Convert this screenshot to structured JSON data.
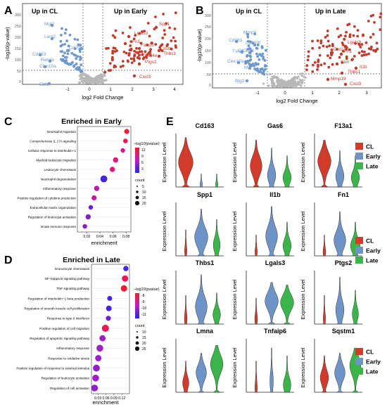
{
  "colors": {
    "up": "#c23b2a",
    "down": "#6c97cf",
    "ns": "#b8b8b8",
    "cl": "#d23a2a",
    "early": "#6e93c6",
    "late": "#3bb54a"
  },
  "panels": {
    "A": {
      "letter": "A",
      "title_left": "Up in CL",
      "title_right": "Up in Early",
      "xlabel": "log2 Fold Change",
      "ylabel": "-log10(p-value)",
      "xticks": [
        "-1",
        "0",
        "1",
        "2",
        "3",
        "4"
      ],
      "yticks": [
        "0",
        "50",
        "100",
        "150",
        "200",
        "250",
        "300"
      ],
      "left_genes": [
        "Mgl2",
        "Lars2",
        "Cd163",
        "Cd209f",
        "Retnla",
        "Clec10a",
        "Ebf1"
      ],
      "right_genes": [
        "Spp1",
        "Lgals3",
        "Fn1",
        "Fabp5",
        "Il1b",
        "Thbs1",
        "Clec4e",
        "Ptgs2",
        "Cxcl3"
      ]
    },
    "B": {
      "letter": "B",
      "title_left": "Up in CL",
      "title_right": "Up in Late",
      "xlabel": "log2 Fold Change",
      "ylabel": "-log10(p-value)",
      "xticks": [
        "-1",
        "0",
        "1",
        "2",
        "3"
      ],
      "yticks": [
        "0",
        "50",
        "100",
        "150",
        "200",
        "250",
        "300"
      ],
      "left_genes": [
        "Mmp9",
        "Cd163",
        "Cd209f",
        "Txnip",
        "Cd209d",
        "Clec10a",
        "Mal",
        "Btg2"
      ],
      "right_genes": [
        "Lgals3",
        "Cxcl2",
        "Fn1",
        "Il1m",
        "Il1b",
        "Thbs1",
        "Mmp19",
        "Cxcl3"
      ]
    },
    "C": {
      "letter": "C",
      "title": "Enriched in Early",
      "xlabel": "enrichment",
      "xticks": [
        "0.02",
        "0.04",
        "0.06",
        "0.08"
      ],
      "legend_color_title": "−log10(pvalue)",
      "legend_color_ticks": [
        "12",
        "9",
        "6",
        "3"
      ],
      "legend_size_title": "count",
      "legend_size_ticks": [
        "5",
        "10",
        "15",
        "20"
      ]
    },
    "D": {
      "letter": "D",
      "title": "Enriched in Late",
      "xlabel": "enrichment",
      "xticks": [
        "0.03",
        "0.06",
        "0.09",
        "0.12"
      ],
      "legend_color_title": "−log10(pvalue)",
      "legend_color_ticks": [
        "-8",
        "-9",
        "-10",
        "-11"
      ],
      "legend_size_title": "count",
      "legend_size_ticks": [
        "10",
        "15",
        "20",
        "25"
      ]
    },
    "E": {
      "letter": "E",
      "ylabel": "Expression Level",
      "legend": [
        "CL",
        "Early",
        "Late"
      ],
      "genes": [
        "Cd163",
        "Gas6",
        "F13a1",
        "Spp1",
        "Il1b",
        "Fn1",
        "Thbs1",
        "Lgals3",
        "Ptgs2",
        "Lmna",
        "Tnfaip6",
        "Sqstm1"
      ]
    }
  },
  "chart_data": [
    {
      "type": "scatter",
      "title": "Enriched in Early",
      "xlabel": "enrichment",
      "series": [
        {
          "values": [
            {
              "term": "Neutrophil migration",
              "x": 0.081,
              "count": 9,
              "neglog10p": 13
            },
            {
              "term": "Comprehensive IL 17A signaling",
              "x": 0.079,
              "count": 7,
              "neglog10p": 12
            },
            {
              "term": "Cellular response to interleukin−1",
              "x": 0.075,
              "count": 6,
              "neglog10p": 9
            },
            {
              "term": "Myeloid leukocyte migration",
              "x": 0.064,
              "count": 10,
              "neglog10p": 10
            },
            {
              "term": "Leukocyte chemotaxis",
              "x": 0.059,
              "count": 10,
              "neglog10p": 10
            },
            {
              "term": "Neutrophil degranulation",
              "x": 0.046,
              "count": 21,
              "neglog10p": 3
            },
            {
              "term": "Inflammatory response",
              "x": 0.035,
              "count": 10,
              "neglog10p": 7
            },
            {
              "term": "Positive regulation of cytokine production",
              "x": 0.031,
              "count": 9,
              "neglog10p": 8
            },
            {
              "term": "Extracellular matrix organization",
              "x": 0.026,
              "count": 6,
              "neglog10p": 4
            },
            {
              "term": "Regulation of leukocyte activation",
              "x": 0.022,
              "count": 10,
              "neglog10p": 5
            },
            {
              "term": "Innate immune response",
              "x": 0.017,
              "count": 6,
              "neglog10p": 5
            }
          ]
        }
      ],
      "xlim": [
        0.01,
        0.085
      ],
      "colorbar_range": [
        2,
        14
      ]
    },
    {
      "type": "scatter",
      "title": "Enriched in Late",
      "xlabel": "enrichment",
      "series": [
        {
          "values": [
            {
              "term": "Granulocyte chemotaxis",
              "x": 0.135,
              "count": 10,
              "neglog10p": -8
            },
            {
              "term": "NF−kappa B signaling pathway",
              "x": 0.132,
              "count": 17,
              "neglog10p": -11
            },
            {
              "term": "TNF signaling pathway",
              "x": 0.128,
              "count": 17,
              "neglog10p": -11.5
            },
            {
              "term": "Regulation of interleukin−1 beta production",
              "x": 0.074,
              "count": 8,
              "neglog10p": -8
            },
            {
              "term": "Regulation of smooth muscle cell proliferation",
              "x": 0.071,
              "count": 12,
              "neglog10p": -8
            },
            {
              "term": "Response to type II interferon",
              "x": 0.069,
              "count": 9,
              "neglog10p": -8.5
            },
            {
              "term": "Positive regulation of cell migration",
              "x": 0.058,
              "count": 22,
              "neglog10p": -11
            },
            {
              "term": "Regulation of apoptotic signaling pathway",
              "x": 0.047,
              "count": 16,
              "neglog10p": -9
            },
            {
              "term": "Inflammatory response",
              "x": 0.037,
              "count": 20,
              "neglog10p": -9
            },
            {
              "term": "Response to oxidative stress",
              "x": 0.031,
              "count": 17,
              "neglog10p": -9
            },
            {
              "term": "Positive regulation of response to external stimulus",
              "x": 0.024,
              "count": 21,
              "neglog10p": -8.8
            },
            {
              "term": "Regulation of leukocyte activation",
              "x": 0.021,
              "count": 20,
              "neglog10p": -9
            },
            {
              "term": "Regulation of cell activation",
              "x": 0.017,
              "count": 20,
              "neglog10p": -8.8
            }
          ]
        }
      ],
      "xlim": [
        0.015,
        0.14
      ],
      "colorbar_range": [
        -11.8,
        -7.6
      ]
    }
  ]
}
